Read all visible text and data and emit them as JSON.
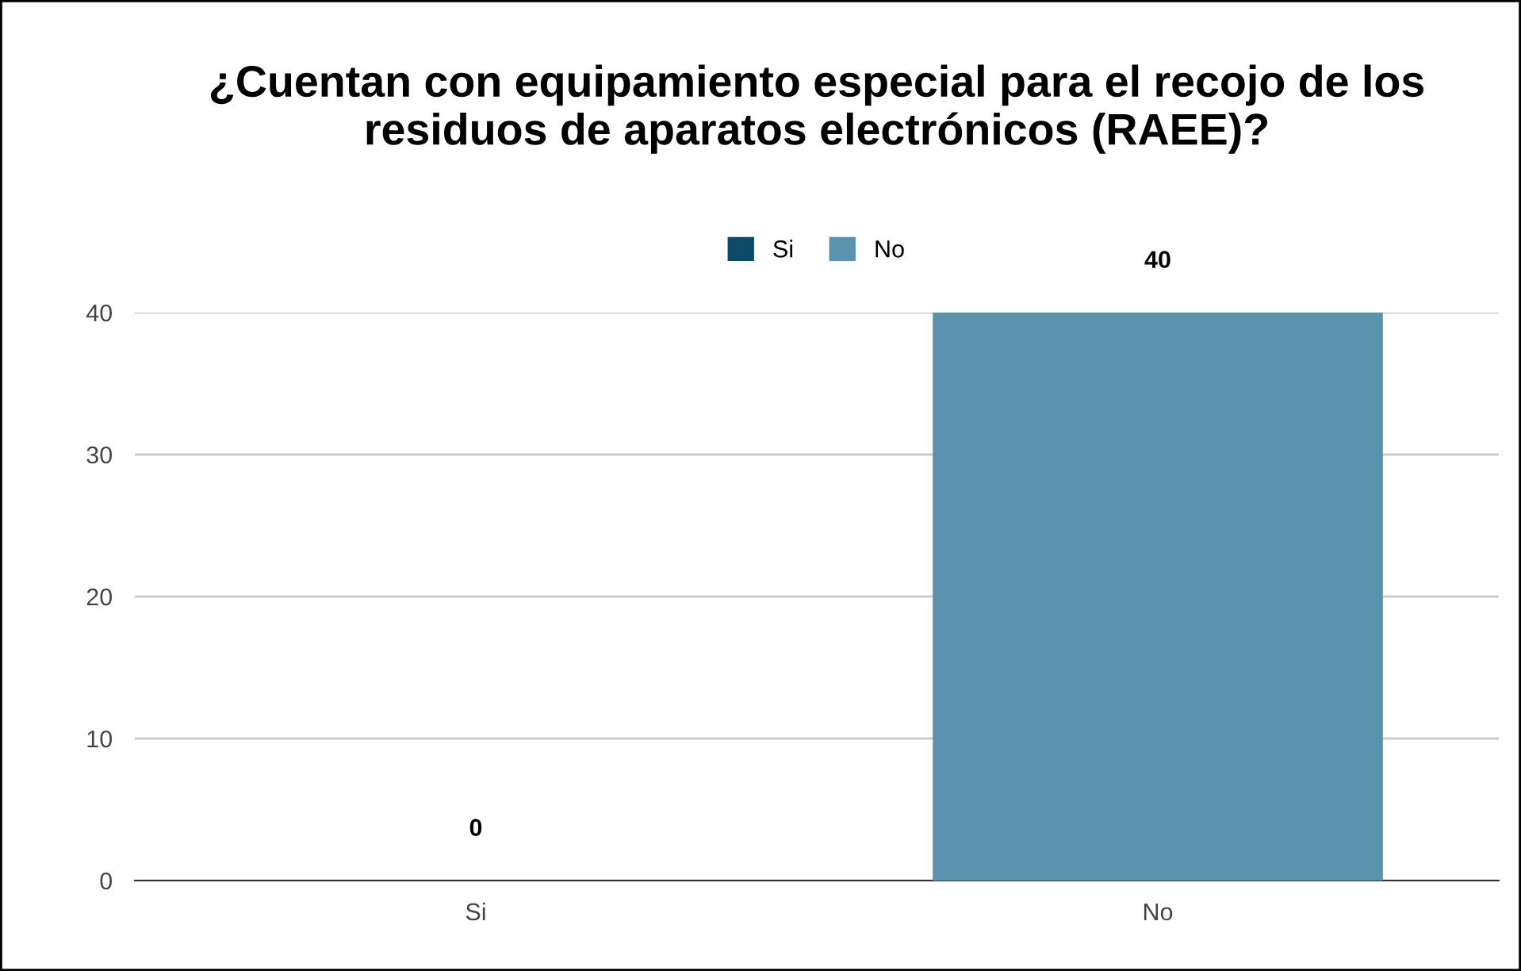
{
  "chart_data": {
    "type": "bar",
    "title": "¿Cuentan con equipamiento especial para el recojo de los residuos de aparatos electrónicos (RAEE)?",
    "categories": [
      "Si",
      "No"
    ],
    "series": [
      {
        "name": "Si",
        "color": "#0d4a66",
        "values": [
          0,
          null
        ]
      },
      {
        "name": "No",
        "color": "#5b93ae",
        "values": [
          null,
          40
        ]
      }
    ],
    "ylim": [
      0,
      40
    ],
    "yticks": [
      0,
      10,
      20,
      30,
      40
    ],
    "grid": "y",
    "legend": "top",
    "data_labels": true
  }
}
